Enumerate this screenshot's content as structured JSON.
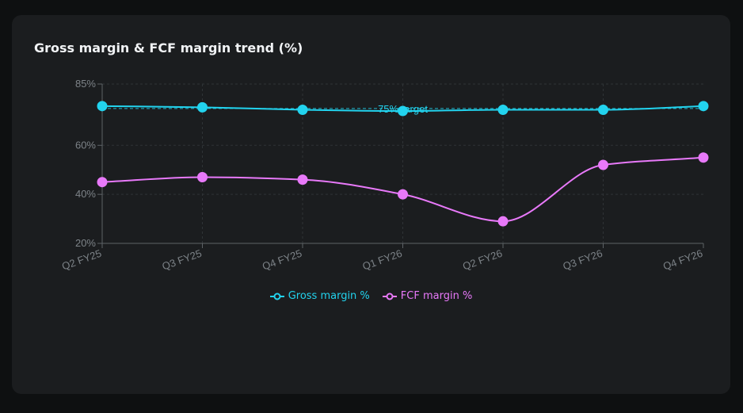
{
  "chart_data": {
    "type": "line",
    "title": "Gross margin & FCF margin trend (%)",
    "categories": [
      "Q2 FY25",
      "Q3 FY25",
      "Q4 FY25",
      "Q1 FY26",
      "Q2 FY26",
      "Q3 FY26",
      "Q4 FY26"
    ],
    "series": [
      {
        "name": "Gross margin %",
        "color": "#22d3ee",
        "values": [
          76,
          75.5,
          74.5,
          74,
          74.5,
          74.5,
          76
        ]
      },
      {
        "name": "FCF margin %",
        "color": "#e879f9",
        "values": [
          45,
          47,
          46,
          40,
          29,
          52,
          55
        ]
      }
    ],
    "ylim": [
      20,
      85
    ],
    "yticks": [
      20,
      40,
      60,
      85
    ],
    "ytick_labels": [
      "20%",
      "40%",
      "60%",
      "85%"
    ],
    "grid": true,
    "legend_position": "bottom",
    "annotations": [
      {
        "type": "hline",
        "y": 75,
        "label": "75% target",
        "color": "#22d3ee"
      }
    ]
  }
}
